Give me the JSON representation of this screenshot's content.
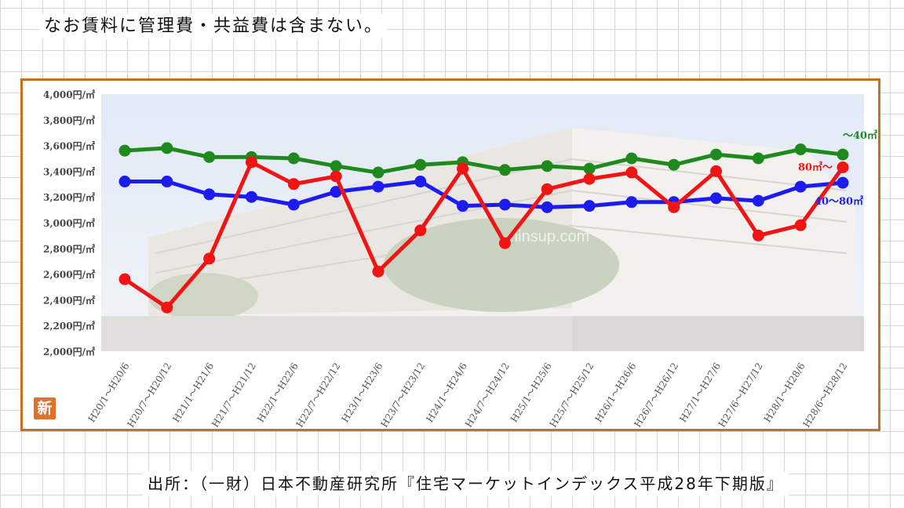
{
  "header": {
    "note": "なお賃料に管理費・共益費は含まない。"
  },
  "footer": {
    "source": "出所：（一財）日本不動産研究所『住宅マーケットインデックス平成28年下期版』"
  },
  "badge": {
    "label": "新"
  },
  "photo_watermark": "ninsup.com",
  "chart_data": {
    "type": "line",
    "categories": [
      "H20/1～H20/6",
      "H20/7～H20/12",
      "H21/1～H21/6",
      "H21/7～H21/12",
      "H22/1～H22/6",
      "H22/7～H22/12",
      "H23/1～H23/6",
      "H23/7～H23/12",
      "H24/1～H24/6",
      "H24/7～H24/12",
      "H25/1～H25/6",
      "H25/7～H25/12",
      "H26/1～H26/6",
      "H26/7～H26/12",
      "H27/1～H27/6",
      "H27/6～H27/12",
      "H28/1～H28/6",
      "H28/6～H28/12"
    ],
    "ylim": [
      2000,
      4000
    ],
    "yticks": [
      {
        "value": 4000,
        "label": "4,000円/㎡"
      },
      {
        "value": 3800,
        "label": "3,800円/㎡"
      },
      {
        "value": 3600,
        "label": "3,600円/㎡"
      },
      {
        "value": 3400,
        "label": "3,400円/㎡"
      },
      {
        "value": 3200,
        "label": "3,200円/㎡"
      },
      {
        "value": 3000,
        "label": "3,000円/㎡"
      },
      {
        "value": 2800,
        "label": "2,800円/㎡"
      },
      {
        "value": 2600,
        "label": "2,600円/㎡"
      },
      {
        "value": 2400,
        "label": "2,400円/㎡"
      },
      {
        "value": 2200,
        "label": "2,200円/㎡"
      },
      {
        "value": 2000,
        "label": "2,000円/㎡"
      }
    ],
    "series": [
      {
        "name": "～40㎡",
        "color": "#1e8a1e",
        "values": [
          3560,
          3580,
          3510,
          3510,
          3500,
          3440,
          3390,
          3450,
          3470,
          3410,
          3440,
          3420,
          3500,
          3450,
          3530,
          3500,
          3570,
          3530
        ]
      },
      {
        "name": "40～80㎡",
        "color": "#1c1cf2",
        "values": [
          3320,
          3320,
          3220,
          3200,
          3140,
          3240,
          3280,
          3320,
          3130,
          3140,
          3120,
          3130,
          3160,
          3160,
          3190,
          3170,
          3280,
          3310
        ]
      },
      {
        "name": "80㎡～",
        "color": "#f01414",
        "values": [
          2560,
          2340,
          2720,
          3470,
          3300,
          3360,
          2620,
          2940,
          3420,
          2840,
          3260,
          3340,
          3390,
          3120,
          3400,
          2900,
          2980,
          3430
        ]
      }
    ]
  }
}
